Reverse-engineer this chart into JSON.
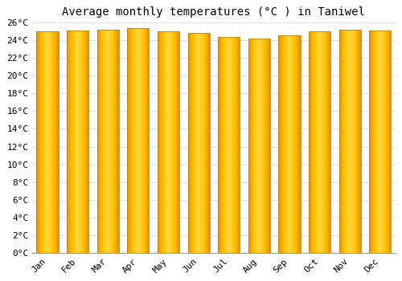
{
  "title": "Average monthly temperatures (°C ) in Taniwel",
  "months": [
    "Jan",
    "Feb",
    "Mar",
    "Apr",
    "May",
    "Jun",
    "Jul",
    "Aug",
    "Sep",
    "Oct",
    "Nov",
    "Dec"
  ],
  "temperatures": [
    25.0,
    25.1,
    25.2,
    25.3,
    25.0,
    24.8,
    24.3,
    24.2,
    24.5,
    25.0,
    25.2,
    25.1
  ],
  "ylim": [
    0,
    26
  ],
  "yticks": [
    0,
    2,
    4,
    6,
    8,
    10,
    12,
    14,
    16,
    18,
    20,
    22,
    24,
    26
  ],
  "ytick_labels": [
    "0°C",
    "2°C",
    "4°C",
    "6°C",
    "8°C",
    "10°C",
    "12°C",
    "14°C",
    "16°C",
    "18°C",
    "20°C",
    "22°C",
    "24°C",
    "26°C"
  ],
  "bar_edge_color": "#b8860b",
  "background_color": "#ffffff",
  "grid_color": "#e0e0e0",
  "title_fontsize": 10,
  "tick_fontsize": 8,
  "bar_width": 0.72,
  "gradient_colors": [
    "#E8900A",
    "#FFC200",
    "#FFD740",
    "#FFC200",
    "#E8900A"
  ],
  "gradient_stops": [
    0.0,
    0.25,
    0.5,
    0.75,
    1.0
  ]
}
